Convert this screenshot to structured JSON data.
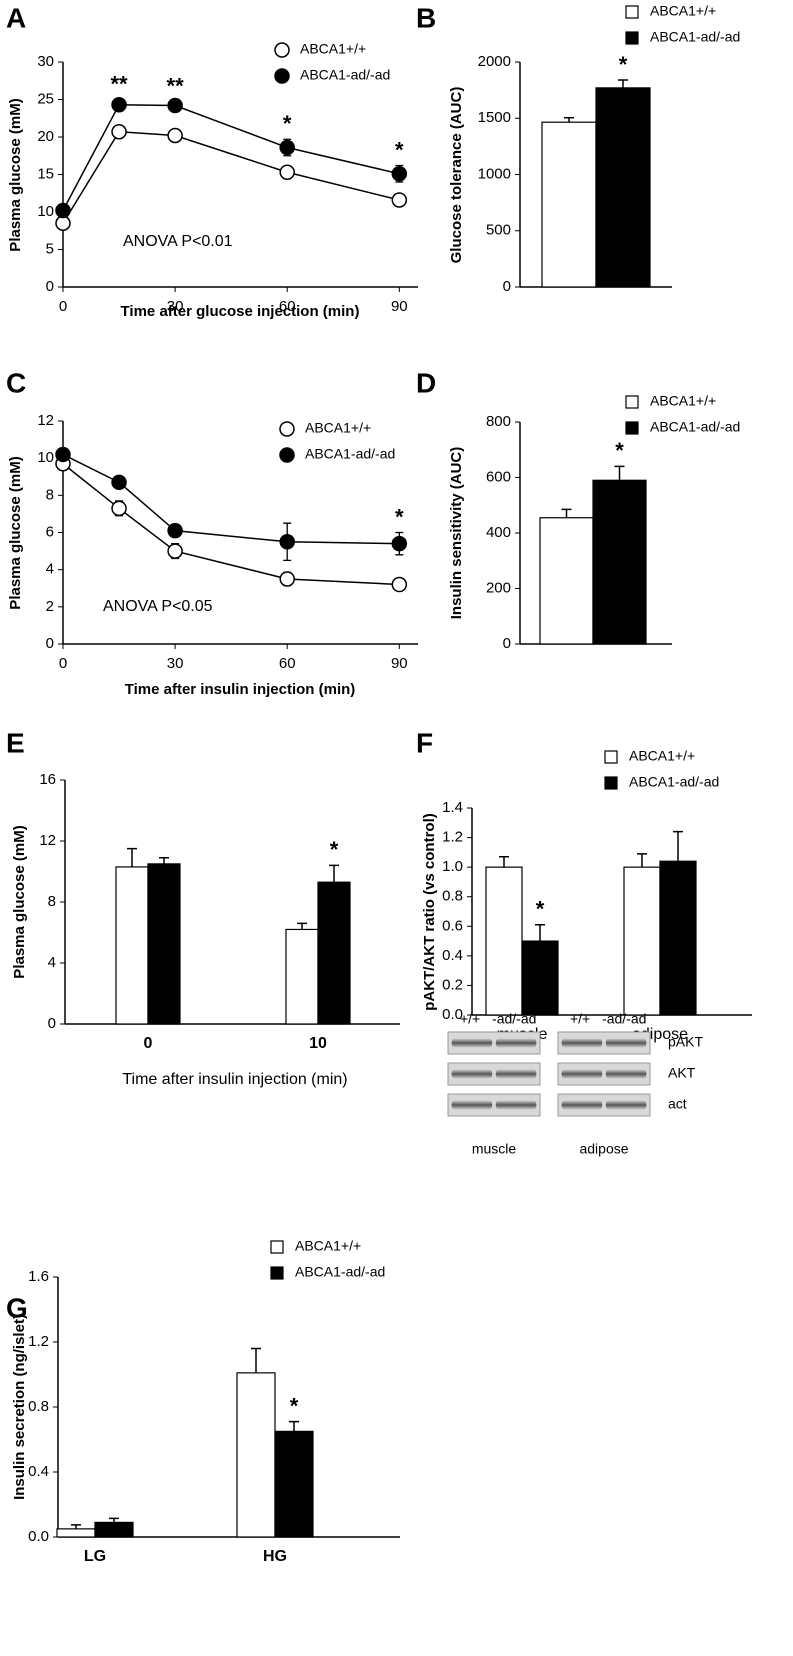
{
  "chart_data": [
    {
      "type": "line",
      "panel": "A",
      "x": [
        0,
        15,
        30,
        60,
        90
      ],
      "xlim": [
        0,
        95
      ],
      "xticks": [
        0,
        30,
        60,
        90
      ],
      "ylim": [
        0,
        30
      ],
      "yticks": [
        0,
        5,
        10,
        15,
        20,
        25,
        30
      ],
      "x_label": "Time after glucose injection (min)",
      "y_label": "Plasma glucose (mM)",
      "note": "ANOVA P<0.01",
      "series": [
        {
          "name": "ABCA1+/+",
          "color": "#ffffff",
          "values": [
            8.5,
            20.7,
            20.2,
            15.3,
            11.6
          ],
          "errors": [
            0.3,
            0.5,
            0.6,
            0.4,
            0.4
          ]
        },
        {
          "name": "ABCA1-ad/-ad",
          "color": "#000000",
          "values": [
            10.2,
            24.3,
            24.2,
            18.6,
            15.1
          ],
          "errors": [
            0.3,
            0.7,
            0.5,
            1.1,
            1.1
          ]
        }
      ],
      "annotations": [
        {
          "text": "**",
          "x": 15
        },
        {
          "text": "**",
          "x": 30
        },
        {
          "text": "*",
          "x": 60
        },
        {
          "text": "*",
          "x": 90
        }
      ]
    },
    {
      "type": "bar",
      "panel": "B",
      "categories": [
        null
      ],
      "ylim": [
        0,
        2000
      ],
      "yticks": [
        0,
        500,
        1000,
        1500,
        2000
      ],
      "y_label": "Glucose tolerance (AUC)",
      "series": [
        {
          "name": "ABCA1+/+",
          "color": "#ffffff",
          "values": [
            1465
          ],
          "errors": [
            40
          ]
        },
        {
          "name": "ABCA1-ad/-ad",
          "color": "#000000",
          "values": [
            1770
          ],
          "errors": [
            70
          ]
        }
      ],
      "annotations": [
        {
          "text": "*"
        }
      ]
    },
    {
      "type": "line",
      "panel": "C",
      "x": [
        0,
        15,
        30,
        60,
        90
      ],
      "xlim": [
        0,
        95
      ],
      "xticks": [
        0,
        30,
        60,
        90
      ],
      "ylim": [
        0,
        12
      ],
      "yticks": [
        0,
        2,
        4,
        6,
        8,
        10,
        12
      ],
      "x_label": "Time after insulin injection (min)",
      "y_label": "Plasma glucose (mM)",
      "note": "ANOVA P<0.05",
      "series": [
        {
          "name": "ABCA1+/+",
          "color": "#ffffff",
          "values": [
            9.7,
            7.3,
            5.0,
            3.5,
            3.2
          ],
          "errors": [
            0.3,
            0.4,
            0.4,
            0.35,
            0.15
          ]
        },
        {
          "name": "ABCA1-ad/-ad",
          "color": "#000000",
          "values": [
            10.2,
            8.7,
            6.1,
            5.5,
            5.4
          ],
          "errors": [
            0.2,
            0.3,
            0.15,
            1.0,
            0.6
          ]
        }
      ],
      "annotations": [
        {
          "text": "*",
          "x": 90
        }
      ]
    },
    {
      "type": "bar",
      "panel": "D",
      "categories": [
        null
      ],
      "ylim": [
        0,
        800
      ],
      "yticks": [
        0,
        200,
        400,
        600,
        800
      ],
      "y_label": "Insulin sensitivity (AUC)",
      "series": [
        {
          "name": "ABCA1+/+",
          "color": "#ffffff",
          "values": [
            455
          ],
          "errors": [
            30
          ]
        },
        {
          "name": "ABCA1-ad/-ad",
          "color": "#000000",
          "values": [
            590
          ],
          "errors": [
            50
          ]
        }
      ],
      "annotations": [
        {
          "text": "*"
        }
      ]
    },
    {
      "type": "bar",
      "panel": "E",
      "categories": [
        "0",
        "10"
      ],
      "ylim": [
        0,
        16
      ],
      "yticks": [
        0,
        4,
        8,
        12,
        16
      ],
      "x_label": "Time after insulin injection (min)",
      "y_label": "Plasma glucose (mM)",
      "series": [
        {
          "color": "#ffffff",
          "values": [
            10.3,
            6.2
          ],
          "errors": [
            1.2,
            0.4
          ]
        },
        {
          "color": "#000000",
          "values": [
            10.5,
            9.3
          ],
          "errors": [
            0.4,
            1.1
          ]
        }
      ],
      "annotations": [
        {
          "text": "*",
          "x": "10"
        }
      ]
    },
    {
      "type": "bar",
      "panel": "F",
      "categories": [
        "muscle",
        "adipose"
      ],
      "ylim": [
        0,
        1.4
      ],
      "yticks": [
        {
          "value": 0,
          "label": "0.0"
        },
        0.2,
        0.4,
        0.6,
        0.8,
        {
          "value": 1,
          "label": "1.0"
        },
        1.2,
        1.4
      ],
      "y_label": "pAKT/AKT ratio (vs control)",
      "series": [
        {
          "name": "ABCA1+/+",
          "color": "#ffffff",
          "values": [
            1.0,
            1.0
          ],
          "errors": [
            0.07,
            0.09
          ]
        },
        {
          "name": "ABCA1-ad/-ad",
          "color": "#000000",
          "values": [
            0.5,
            1.04
          ],
          "errors": [
            0.11,
            0.2
          ]
        }
      ],
      "annotations": [
        {
          "text": "*",
          "x": "muscle"
        }
      ],
      "blot": {
        "lanes": [
          "+/+",
          "-ad/-ad"
        ],
        "rows": [
          "pAKT",
          "AKT",
          "act"
        ],
        "tissues": [
          "muscle",
          "adipose"
        ]
      }
    },
    {
      "type": "bar",
      "panel": "G",
      "categories": [
        "LG",
        "HG"
      ],
      "ylim": [
        0,
        1.6
      ],
      "yticks": [
        {
          "value": 0,
          "label": "0.0"
        },
        0.4,
        0.8,
        1.2,
        1.6
      ],
      "y_label": "Insulin secretion (ng/islet)",
      "series": [
        {
          "name": "ABCA1+/+",
          "color": "#ffffff",
          "values": [
            0.05,
            1.01
          ],
          "errors": [
            0.025,
            0.15
          ]
        },
        {
          "name": "ABCA1-ad/-ad",
          "color": "#000000",
          "values": [
            0.09,
            0.65
          ],
          "errors": [
            0.025,
            0.06
          ]
        }
      ],
      "annotations": [
        {
          "text": "*",
          "x": "HG"
        }
      ]
    }
  ]
}
